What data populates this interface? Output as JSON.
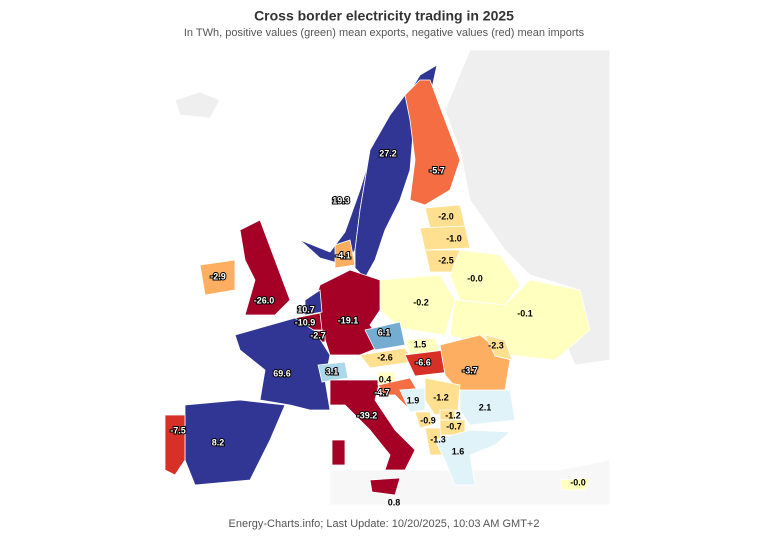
{
  "header": {
    "title": "Cross border electricity trading in 2025",
    "subtitle": "In TWh, positive values (green) mean exports, negative values (red) mean imports"
  },
  "footer": "Energy-Charts.info; Last Update: 10/20/2025, 10:03 AM GMT+2",
  "regions": [
    "27.2",
    "19.3",
    "-5.7",
    "-2.0",
    "-1.0",
    "-2.5",
    "-4.1",
    "-0.0",
    "-2.9",
    "-26.0",
    "-0.2",
    "-0.1",
    "10.7",
    "-10.9",
    "-19.1",
    "-2.7",
    "6.1",
    "1.5",
    "-2.3",
    "-2.6",
    "-6.6",
    "-3.7",
    "69.6",
    "3.1",
    "0.4",
    "-4.7",
    "-1.2",
    "1.9",
    "2.1",
    "-0.9",
    "-1.2",
    "-0.7",
    "-39.2",
    "-7.5",
    "8.2",
    "-1.3",
    "1.6",
    "-0.0",
    "0.8"
  ]
}
